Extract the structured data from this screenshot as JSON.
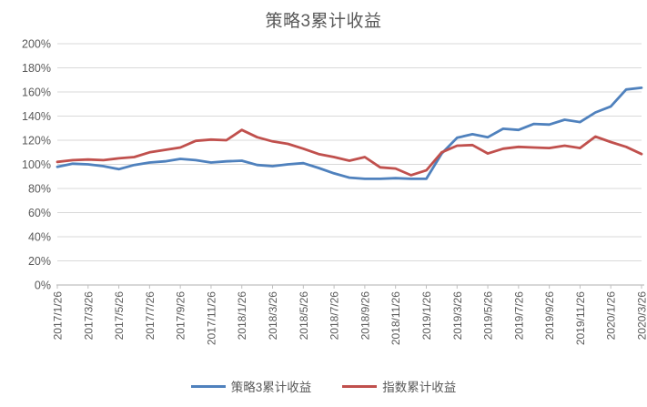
{
  "chart_data": {
    "type": "line",
    "title": "策略3累计收益",
    "grid": "horizontal",
    "legend_position": "bottom",
    "ylim_percent": [
      0,
      200
    ],
    "y_tick_step_percent": 20,
    "y_ticks": [
      "0%",
      "20%",
      "40%",
      "60%",
      "80%",
      "100%",
      "120%",
      "140%",
      "160%",
      "180%",
      "200%"
    ],
    "x_tick_every": 2,
    "x": [
      "2017/1/26",
      "2017/2/26",
      "2017/3/26",
      "2017/4/26",
      "2017/5/26",
      "2017/6/26",
      "2017/7/26",
      "2017/8/26",
      "2017/9/26",
      "2017/10/26",
      "2017/11/26",
      "2017/12/26",
      "2018/1/26",
      "2018/2/26",
      "2018/3/26",
      "2018/4/26",
      "2018/5/26",
      "2018/6/26",
      "2018/7/26",
      "2018/8/26",
      "2018/9/26",
      "2018/10/26",
      "2018/11/26",
      "2018/12/26",
      "2019/1/26",
      "2019/2/26",
      "2019/3/26",
      "2019/4/26",
      "2019/5/26",
      "2019/6/26",
      "2019/7/26",
      "2019/8/26",
      "2019/9/26",
      "2019/10/26",
      "2019/11/26",
      "2019/12/26",
      "2020/1/26",
      "2020/2/26",
      "2020/3/26"
    ],
    "x_tick_labels": [
      "2017/1/26",
      "2017/3/26",
      "2017/5/26",
      "2017/7/26",
      "2017/9/26",
      "2017/11/26",
      "2018/1/26",
      "2018/3/26",
      "2018/5/26",
      "2018/7/26",
      "2018/9/26",
      "2018/11/26",
      "2019/1/26",
      "2019/3/26",
      "2019/5/26",
      "2019/7/26",
      "2019/9/26",
      "2019/11/26",
      "2020/1/26",
      "2020/3/26"
    ],
    "series": [
      {
        "name": "策略3累计收益",
        "color": "#4F81BD",
        "values_percent": [
          98,
          100.5,
          100,
          98.5,
          96,
          99.5,
          101.5,
          102.5,
          104.5,
          103.5,
          101.5,
          102.5,
          103,
          99.5,
          98.5,
          100,
          101,
          97,
          92.5,
          89,
          88,
          88,
          88.5,
          88,
          88,
          109,
          122,
          125,
          122.5,
          129.5,
          128.5,
          133.5,
          133,
          137,
          135,
          143,
          148,
          162,
          163.5
        ]
      },
      {
        "name": "指数累计收益",
        "color": "#C0504D",
        "values_percent": [
          102,
          103.5,
          104,
          103.5,
          105,
          106,
          110,
          112,
          114,
          119.5,
          120.5,
          120,
          128.5,
          122.5,
          119,
          117,
          113,
          108.5,
          106,
          103,
          106,
          97.5,
          96.5,
          91,
          95,
          110,
          115.5,
          116,
          109,
          113,
          114.5,
          114,
          113.5,
          115.5,
          113.5,
          123,
          118.5,
          114.5,
          108.5
        ]
      }
    ],
    "style_colors": {
      "title_text": "#595959",
      "axis_text": "#595959",
      "gridline": "#D9D9D9",
      "axis_line": "#BFBFBF"
    }
  }
}
